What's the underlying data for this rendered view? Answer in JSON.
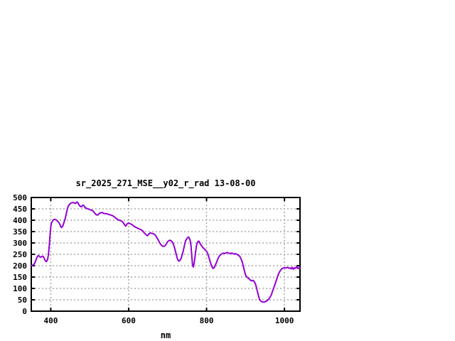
{
  "window": {
    "background_color": "#ffffff"
  },
  "chart_data": {
    "type": "line",
    "title": "sr_2025_271_MSE__y02_r_rad 13-08-00",
    "xlabel": "nm",
    "ylabel": "",
    "xlim": [
      350,
      1040
    ],
    "ylim": [
      0,
      500
    ],
    "xticks": [
      400,
      600,
      800,
      1000
    ],
    "yticks": [
      0,
      50,
      100,
      150,
      200,
      250,
      300,
      350,
      400,
      450,
      500
    ],
    "grid": true,
    "legend": null,
    "colors": {
      "line": "#9400d3",
      "grid": "#a8a8a8",
      "border": "#000000",
      "text": "#000000",
      "background": "#ffffff"
    },
    "series": [
      {
        "name": "sr_2025_271_MSE__y02_r_rad",
        "points": [
          [
            350,
            200
          ],
          [
            353,
            202
          ],
          [
            356,
            205
          ],
          [
            359,
            211
          ],
          [
            362,
            225
          ],
          [
            365,
            238
          ],
          [
            368,
            245
          ],
          [
            371,
            241
          ],
          [
            374,
            237
          ],
          [
            377,
            240
          ],
          [
            380,
            242
          ],
          [
            383,
            233
          ],
          [
            386,
            222
          ],
          [
            389,
            218
          ],
          [
            392,
            228
          ],
          [
            394,
            248
          ],
          [
            396,
            285
          ],
          [
            398,
            330
          ],
          [
            400,
            370
          ],
          [
            402,
            388
          ],
          [
            405,
            398
          ],
          [
            408,
            403
          ],
          [
            411,
            404
          ],
          [
            414,
            401
          ],
          [
            417,
            397
          ],
          [
            420,
            392
          ],
          [
            423,
            383
          ],
          [
            426,
            371
          ],
          [
            428,
            368
          ],
          [
            431,
            375
          ],
          [
            434,
            390
          ],
          [
            437,
            407
          ],
          [
            440,
            430
          ],
          [
            443,
            452
          ],
          [
            446,
            465
          ],
          [
            449,
            471
          ],
          [
            452,
            476
          ],
          [
            455,
            477
          ],
          [
            458,
            478
          ],
          [
            461,
            476
          ],
          [
            464,
            474
          ],
          [
            467,
            480
          ],
          [
            470,
            477
          ],
          [
            473,
            466
          ],
          [
            476,
            461
          ],
          [
            479,
            459
          ],
          [
            482,
            466
          ],
          [
            485,
            464
          ],
          [
            488,
            456
          ],
          [
            491,
            453
          ],
          [
            494,
            451
          ],
          [
            497,
            449
          ],
          [
            500,
            447
          ],
          [
            503,
            445
          ],
          [
            506,
            443
          ],
          [
            509,
            440
          ],
          [
            512,
            433
          ],
          [
            515,
            427
          ],
          [
            518,
            423
          ],
          [
            521,
            423
          ],
          [
            524,
            429
          ],
          [
            527,
            432
          ],
          [
            530,
            434
          ],
          [
            533,
            433
          ],
          [
            536,
            430
          ],
          [
            539,
            429
          ],
          [
            542,
            429
          ],
          [
            545,
            428
          ],
          [
            548,
            426
          ],
          [
            551,
            424
          ],
          [
            554,
            423
          ],
          [
            557,
            421
          ],
          [
            560,
            419
          ],
          [
            563,
            415
          ],
          [
            566,
            411
          ],
          [
            569,
            407
          ],
          [
            572,
            403
          ],
          [
            575,
            400
          ],
          [
            578,
            399
          ],
          [
            581,
            397
          ],
          [
            584,
            394
          ],
          [
            587,
            387
          ],
          [
            590,
            379
          ],
          [
            592,
            374
          ],
          [
            594,
            378
          ],
          [
            596,
            384
          ],
          [
            598,
            386
          ],
          [
            600,
            388
          ],
          [
            603,
            385
          ],
          [
            606,
            383
          ],
          [
            609,
            380
          ],
          [
            612,
            376
          ],
          [
            615,
            372
          ],
          [
            618,
            369
          ],
          [
            621,
            367
          ],
          [
            624,
            364
          ],
          [
            627,
            362
          ],
          [
            630,
            360
          ],
          [
            633,
            357
          ],
          [
            636,
            353
          ],
          [
            639,
            347
          ],
          [
            642,
            341
          ],
          [
            645,
            336
          ],
          [
            648,
            332
          ],
          [
            650,
            335
          ],
          [
            652,
            339
          ],
          [
            655,
            344
          ],
          [
            658,
            343
          ],
          [
            661,
            342
          ],
          [
            664,
            340
          ],
          [
            667,
            337
          ],
          [
            670,
            331
          ],
          [
            673,
            322
          ],
          [
            676,
            313
          ],
          [
            679,
            303
          ],
          [
            682,
            294
          ],
          [
            685,
            289
          ],
          [
            688,
            285
          ],
          [
            691,
            285
          ],
          [
            694,
            289
          ],
          [
            697,
            297
          ],
          [
            700,
            305
          ],
          [
            703,
            310
          ],
          [
            706,
            312
          ],
          [
            709,
            310
          ],
          [
            712,
            305
          ],
          [
            715,
            294
          ],
          [
            718,
            278
          ],
          [
            721,
            258
          ],
          [
            724,
            237
          ],
          [
            727,
            224
          ],
          [
            729,
            220
          ],
          [
            731,
            222
          ],
          [
            734,
            230
          ],
          [
            737,
            245
          ],
          [
            740,
            264
          ],
          [
            743,
            287
          ],
          [
            746,
            308
          ],
          [
            749,
            318
          ],
          [
            752,
            324
          ],
          [
            754,
            326
          ],
          [
            756,
            321
          ],
          [
            758,
            311
          ],
          [
            760,
            290
          ],
          [
            762,
            245
          ],
          [
            764,
            203
          ],
          [
            766,
            194
          ],
          [
            768,
            210
          ],
          [
            770,
            233
          ],
          [
            772,
            262
          ],
          [
            774,
            288
          ],
          [
            776,
            300
          ],
          [
            778,
            307
          ],
          [
            780,
            308
          ],
          [
            782,
            303
          ],
          [
            784,
            296
          ],
          [
            787,
            288
          ],
          [
            790,
            281
          ],
          [
            793,
            276
          ],
          [
            796,
            271
          ],
          [
            800,
            264
          ],
          [
            803,
            253
          ],
          [
            806,
            237
          ],
          [
            809,
            219
          ],
          [
            812,
            204
          ],
          [
            815,
            192
          ],
          [
            817,
            188
          ],
          [
            820,
            192
          ],
          [
            823,
            204
          ],
          [
            826,
            216
          ],
          [
            829,
            230
          ],
          [
            832,
            240
          ],
          [
            835,
            247
          ],
          [
            838,
            251
          ],
          [
            841,
            254
          ],
          [
            844,
            255
          ],
          [
            847,
            254
          ],
          [
            850,
            257
          ],
          [
            853,
            258
          ],
          [
            856,
            256
          ],
          [
            859,
            254
          ],
          [
            862,
            254
          ],
          [
            865,
            256
          ],
          [
            868,
            253
          ],
          [
            871,
            251
          ],
          [
            874,
            253
          ],
          [
            877,
            251
          ],
          [
            880,
            248
          ],
          [
            883,
            245
          ],
          [
            886,
            239
          ],
          [
            889,
            228
          ],
          [
            892,
            215
          ],
          [
            895,
            193
          ],
          [
            898,
            172
          ],
          [
            901,
            156
          ],
          [
            904,
            149
          ],
          [
            907,
            146
          ],
          [
            910,
            141
          ],
          [
            913,
            136
          ],
          [
            916,
            133
          ],
          [
            919,
            136
          ],
          [
            921,
            133
          ],
          [
            924,
            126
          ],
          [
            927,
            112
          ],
          [
            930,
            92
          ],
          [
            933,
            70
          ],
          [
            936,
            52
          ],
          [
            939,
            45
          ],
          [
            942,
            41
          ],
          [
            945,
            40
          ],
          [
            948,
            40
          ],
          [
            951,
            42
          ],
          [
            954,
            44
          ],
          [
            957,
            48
          ],
          [
            960,
            54
          ],
          [
            963,
            61
          ],
          [
            966,
            71
          ],
          [
            969,
            85
          ],
          [
            972,
            100
          ],
          [
            975,
            114
          ],
          [
            978,
            129
          ],
          [
            981,
            145
          ],
          [
            984,
            160
          ],
          [
            987,
            172
          ],
          [
            990,
            180
          ],
          [
            993,
            186
          ],
          [
            996,
            189
          ],
          [
            999,
            191
          ],
          [
            1002,
            191
          ],
          [
            1005,
            190
          ],
          [
            1008,
            193
          ],
          [
            1011,
            189
          ],
          [
            1014,
            190
          ],
          [
            1017,
            186
          ],
          [
            1020,
            193
          ],
          [
            1023,
            184
          ],
          [
            1026,
            191
          ],
          [
            1029,
            189
          ],
          [
            1032,
            196
          ],
          [
            1035,
            187
          ],
          [
            1038,
            192
          ],
          [
            1040,
            191
          ]
        ]
      }
    ]
  }
}
